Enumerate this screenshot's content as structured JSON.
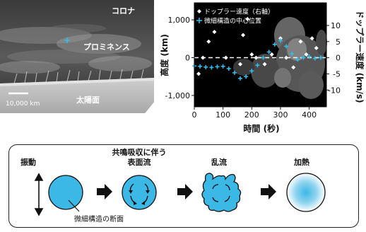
{
  "image_labels": {
    "corona": "コロナ",
    "prominence": "プロミネンス",
    "surface": "太陽面",
    "scale_bar": "10,000 km"
  },
  "chart_data": {
    "type": "scatter",
    "xlabel": "時間 (秒)",
    "ylabel_left": "高度 (km)",
    "ylabel_right": "ドップラー速度 (km/s)",
    "x_ticks": [
      "0",
      "100",
      "200",
      "300",
      "400"
    ],
    "y_left_ticks": [
      "1,000",
      "0",
      "-1,000"
    ],
    "y_right_ticks": [
      "10",
      "5",
      "0",
      "-5",
      "-10"
    ],
    "xlim": [
      0,
      460
    ],
    "ylim_left": [
      -1300,
      1450
    ],
    "ylim_right": [
      -15.2,
      17
    ],
    "legend": [
      "ドップラー速度（右軸）",
      "微細構造の中心位置"
    ],
    "legend_position": "top-left",
    "series": [
      {
        "name": "ドップラー速度（右軸）",
        "axis": "right",
        "marker": "diamond",
        "color": "#ffffff",
        "x": [
          15,
          30,
          50,
          70,
          110,
          160,
          170,
          185,
          200,
          215,
          245,
          270,
          300,
          320,
          345,
          370,
          390,
          410,
          425
        ],
        "y": [
          -5,
          0,
          5,
          8,
          0,
          -2,
          7,
          12,
          1,
          0,
          -2,
          1,
          6,
          0,
          -3,
          5,
          1,
          6,
          3
        ]
      },
      {
        "name": "微細構造の中心位置",
        "axis": "left",
        "marker": "plus",
        "color": "#33bbe8",
        "x": [
          0,
          20,
          40,
          60,
          80,
          100,
          120,
          140,
          160,
          180,
          200,
          220,
          240,
          260,
          280,
          300,
          320,
          340,
          360,
          380,
          400,
          420,
          440
        ],
        "y": [
          -220,
          -230,
          -250,
          -260,
          -240,
          -230,
          -290,
          -400,
          -550,
          -500,
          -350,
          -200,
          0,
          150,
          350,
          450,
          300,
          100,
          -50,
          0,
          30,
          -20,
          0
        ]
      }
    ]
  },
  "flow": {
    "oscillation_label": "振動",
    "surface_flow_label": "共鳴吸収に伴う\n表面流",
    "turbulence_label": "乱流",
    "heating_label": "加熱",
    "cross_section_label": "微細構造の断面"
  },
  "colors": {
    "accent": "#3cb8e6",
    "dark": "#111111"
  }
}
